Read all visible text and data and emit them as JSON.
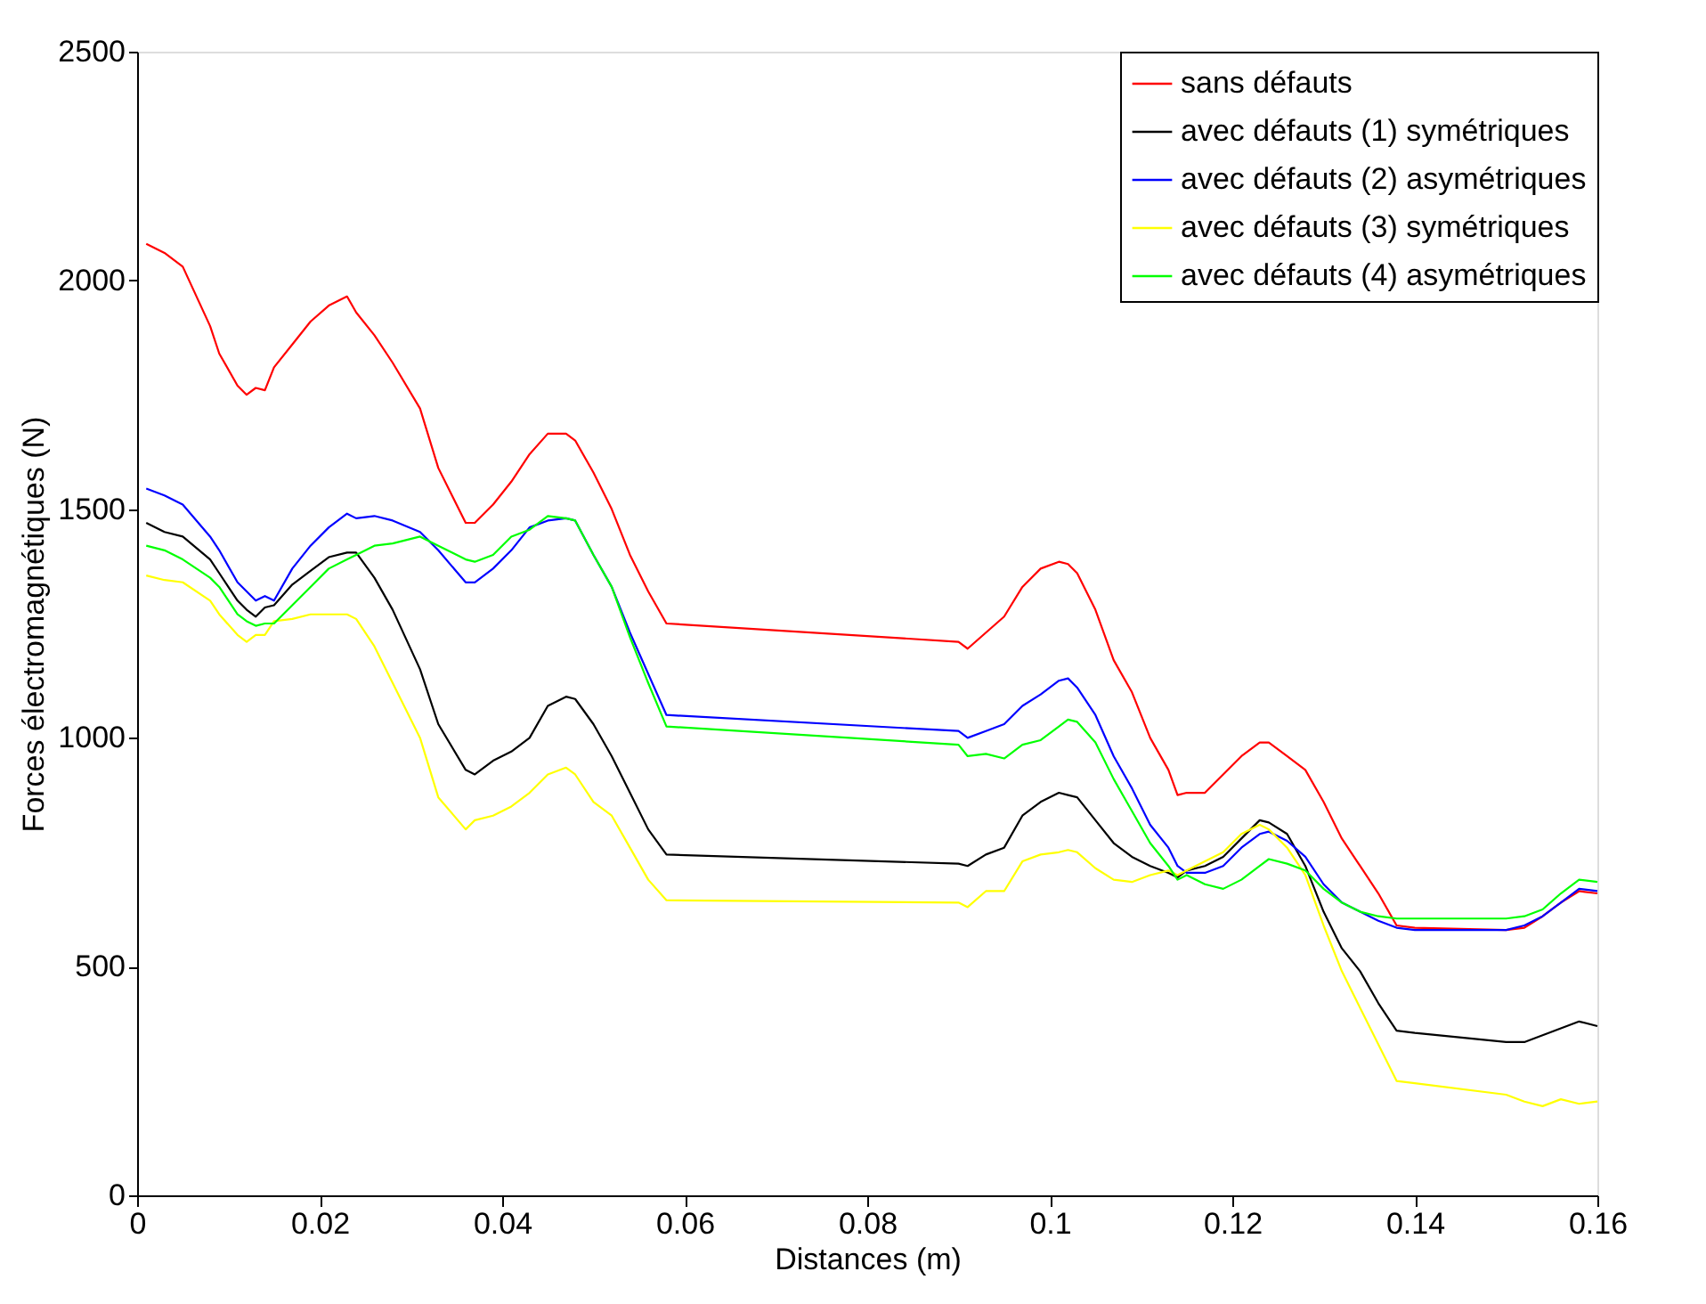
{
  "chart_data": {
    "type": "line",
    "xlabel": "Distances (m)",
    "ylabel": "Forces électromagnétiques (N)",
    "x": [
      0.001,
      0.003,
      0.005,
      0.008,
      0.009,
      0.011,
      0.012,
      0.013,
      0.014,
      0.015,
      0.017,
      0.019,
      0.021,
      0.023,
      0.024,
      0.026,
      0.028,
      0.031,
      0.033,
      0.036,
      0.037,
      0.039,
      0.041,
      0.043,
      0.045,
      0.047,
      0.048,
      0.05,
      0.052,
      0.054,
      0.056,
      0.058,
      0.09,
      0.091,
      0.093,
      0.095,
      0.097,
      0.099,
      0.101,
      0.102,
      0.103,
      0.105,
      0.107,
      0.109,
      0.111,
      0.113,
      0.114,
      0.115,
      0.117,
      0.119,
      0.121,
      0.123,
      0.124,
      0.126,
      0.128,
      0.13,
      0.132,
      0.134,
      0.136,
      0.138,
      0.14,
      0.15,
      0.152,
      0.154,
      0.156,
      0.158,
      0.16
    ],
    "series": [
      {
        "name": "sans défauts",
        "color": "#ff0000",
        "values": [
          2080,
          2060,
          2030,
          1900,
          1840,
          1770,
          1750,
          1765,
          1760,
          1810,
          1860,
          1910,
          1945,
          1965,
          1930,
          1880,
          1820,
          1720,
          1590,
          1470,
          1470,
          1510,
          1560,
          1620,
          1665,
          1665,
          1650,
          1580,
          1500,
          1400,
          1320,
          1250,
          1210,
          1195,
          1230,
          1265,
          1330,
          1370,
          1385,
          1380,
          1360,
          1280,
          1170,
          1100,
          1000,
          930,
          875,
          880,
          880,
          920,
          960,
          990,
          990,
          960,
          930,
          860,
          780,
          720,
          660,
          590,
          585,
          580,
          585,
          610,
          640,
          665,
          660
        ]
      },
      {
        "name": "avec défauts (1) symétriques",
        "color": "#000000",
        "values": [
          1470,
          1450,
          1440,
          1390,
          1360,
          1300,
          1280,
          1265,
          1285,
          1290,
          1335,
          1365,
          1395,
          1405,
          1405,
          1350,
          1280,
          1150,
          1030,
          930,
          920,
          950,
          970,
          1000,
          1070,
          1090,
          1085,
          1030,
          960,
          880,
          800,
          745,
          725,
          720,
          745,
          760,
          830,
          860,
          880,
          875,
          870,
          820,
          770,
          740,
          720,
          705,
          695,
          710,
          720,
          740,
          780,
          820,
          815,
          790,
          720,
          620,
          540,
          490,
          420,
          360,
          355,
          335,
          335,
          350,
          365,
          380,
          370
        ]
      },
      {
        "name": "avec défauts (2) asymétriques",
        "color": "#0000ff",
        "values": [
          1545,
          1530,
          1510,
          1440,
          1410,
          1340,
          1320,
          1300,
          1310,
          1300,
          1370,
          1420,
          1460,
          1490,
          1480,
          1485,
          1475,
          1450,
          1410,
          1340,
          1340,
          1370,
          1410,
          1460,
          1475,
          1480,
          1475,
          1400,
          1330,
          1230,
          1140,
          1050,
          1015,
          1000,
          1015,
          1030,
          1070,
          1095,
          1125,
          1130,
          1110,
          1050,
          960,
          890,
          810,
          760,
          720,
          705,
          705,
          720,
          760,
          790,
          795,
          775,
          740,
          680,
          640,
          620,
          600,
          585,
          580,
          580,
          590,
          610,
          640,
          670,
          665
        ]
      },
      {
        "name": "avec défauts (3) symétriques",
        "color": "#ffff00",
        "values": [
          1355,
          1345,
          1340,
          1300,
          1270,
          1225,
          1210,
          1225,
          1225,
          1255,
          1260,
          1270,
          1270,
          1270,
          1260,
          1200,
          1120,
          1000,
          870,
          800,
          820,
          830,
          850,
          880,
          920,
          935,
          920,
          860,
          830,
          760,
          690,
          645,
          640,
          630,
          665,
          665,
          730,
          745,
          750,
          755,
          750,
          715,
          690,
          685,
          700,
          710,
          700,
          710,
          730,
          750,
          790,
          810,
          800,
          760,
          700,
          590,
          490,
          410,
          330,
          250,
          245,
          220,
          205,
          195,
          210,
          200,
          205
        ]
      },
      {
        "name": "avec défauts (4) asymétriques",
        "color": "#00ff00",
        "values": [
          1420,
          1410,
          1390,
          1350,
          1330,
          1270,
          1255,
          1245,
          1250,
          1250,
          1290,
          1330,
          1370,
          1390,
          1400,
          1420,
          1425,
          1440,
          1420,
          1390,
          1385,
          1400,
          1440,
          1455,
          1485,
          1480,
          1475,
          1400,
          1330,
          1220,
          1120,
          1025,
          985,
          960,
          965,
          955,
          985,
          995,
          1025,
          1040,
          1035,
          990,
          910,
          840,
          770,
          720,
          690,
          700,
          680,
          670,
          690,
          720,
          735,
          725,
          710,
          670,
          640,
          620,
          610,
          605,
          605,
          605,
          610,
          625,
          660,
          690,
          685
        ]
      }
    ],
    "xlim": [
      0,
      0.16
    ],
    "xticks": [
      0,
      0.02,
      0.04,
      0.06,
      0.08,
      0.1,
      0.12,
      0.14,
      0.16
    ],
    "ylim": [
      0,
      2500
    ],
    "yticks": [
      0,
      500,
      1000,
      1500,
      2000,
      2500
    ],
    "grid": false,
    "legend": "top right",
    "line_style": "solid",
    "marker": "none"
  }
}
